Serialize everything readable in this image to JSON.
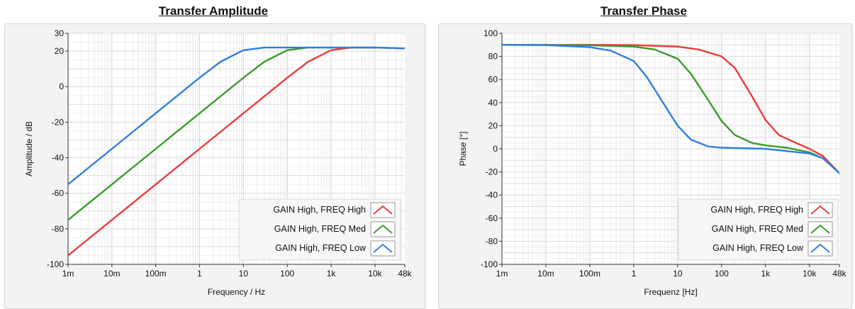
{
  "chart_data": [
    {
      "type": "line",
      "title": "Transfer Amplitude",
      "xlabel": "Frequency / Hz",
      "ylabel": "Amplitude / dB",
      "x_scale": "log",
      "xlim": [
        0.001,
        48000
      ],
      "ylim": [
        -100,
        30
      ],
      "x_ticks": [
        0.001,
        0.01,
        0.1,
        1,
        10,
        100,
        1000,
        10000,
        48000
      ],
      "x_tick_labels": [
        "1m",
        "10m",
        "100m",
        "1",
        "10",
        "100",
        "1k",
        "10k",
        "48k"
      ],
      "y_ticks": [
        30,
        20,
        0,
        -20,
        -40,
        -60,
        -80,
        -100
      ],
      "y_tick_labels": [
        "30",
        "20",
        "0",
        "-20",
        "-40",
        "-60",
        "-80",
        "-100"
      ],
      "grid": true,
      "legend_position": "bottom-right",
      "series": [
        {
          "name": "GAIN High, FREQ High",
          "color": "#ee3b3b",
          "x": [
            0.001,
            0.01,
            0.1,
            1,
            10,
            100,
            300,
            1000,
            3000,
            10000,
            48000
          ],
          "y": [
            -95,
            -75,
            -55,
            -35,
            -15,
            5,
            14,
            20.5,
            22,
            22,
            21.5
          ]
        },
        {
          "name": "GAIN High, FREQ Med",
          "color": "#3c9a2e",
          "x": [
            0.001,
            0.01,
            0.1,
            1,
            10,
            30,
            100,
            300,
            1000,
            10000,
            48000
          ],
          "y": [
            -75,
            -55,
            -35,
            -15,
            5,
            14,
            20.5,
            22,
            22,
            22,
            21.5
          ]
        },
        {
          "name": "GAIN High, FREQ Low",
          "color": "#2f7fe0",
          "x": [
            0.001,
            0.01,
            0.1,
            1,
            3,
            10,
            30,
            100,
            1000,
            10000,
            48000
          ],
          "y": [
            -55,
            -35,
            -15,
            5,
            14,
            20.5,
            22,
            22,
            22,
            22,
            21.5
          ]
        }
      ]
    },
    {
      "type": "line",
      "title": "Transfer Phase",
      "xlabel": "Frequenz [Hz]",
      "ylabel": "Phase [°]",
      "x_scale": "log",
      "xlim": [
        0.001,
        48000
      ],
      "ylim": [
        -100,
        100
      ],
      "x_ticks": [
        0.001,
        0.01,
        0.1,
        1,
        10,
        100,
        1000,
        10000,
        48000
      ],
      "x_tick_labels": [
        "1m",
        "10m",
        "100m",
        "1",
        "10",
        "100",
        "1k",
        "10k",
        "48k"
      ],
      "y_ticks": [
        100,
        80,
        60,
        40,
        20,
        0,
        -20,
        -40,
        -60,
        -80,
        -100
      ],
      "y_tick_labels": [
        "100",
        "80",
        "60",
        "40",
        "20",
        "0",
        "-20",
        "-40",
        "-60",
        "-80",
        "-100"
      ],
      "grid": true,
      "legend_position": "bottom-right",
      "series": [
        {
          "name": "GAIN High, FREQ High",
          "color": "#ee3b3b",
          "x": [
            0.001,
            0.1,
            1,
            10,
            30,
            100,
            200,
            500,
            1000,
            2000,
            5000,
            10000,
            20000,
            48000
          ],
          "y": [
            90,
            90,
            89.8,
            88.5,
            86,
            80,
            70,
            45,
            25,
            12,
            5,
            0,
            -6,
            -21
          ]
        },
        {
          "name": "GAIN High, FREQ Med",
          "color": "#3c9a2e",
          "x": [
            0.001,
            0.1,
            1,
            3,
            10,
            20,
            50,
            100,
            200,
            500,
            1000,
            3000,
            10000,
            20000,
            48000
          ],
          "y": [
            90,
            89.6,
            88.5,
            86,
            78,
            65,
            42,
            24,
            12,
            5,
            3,
            1,
            -3,
            -8,
            -21
          ]
        },
        {
          "name": "GAIN High, FREQ Low",
          "color": "#2f7fe0",
          "x": [
            0.001,
            0.01,
            0.1,
            0.3,
            1,
            2,
            5,
            10,
            20,
            50,
            100,
            1000,
            10000,
            20000,
            48000
          ],
          "y": [
            90,
            89.8,
            88,
            85,
            76,
            62,
            38,
            20,
            8,
            2,
            1,
            0,
            -4,
            -8,
            -21
          ]
        }
      ]
    }
  ]
}
